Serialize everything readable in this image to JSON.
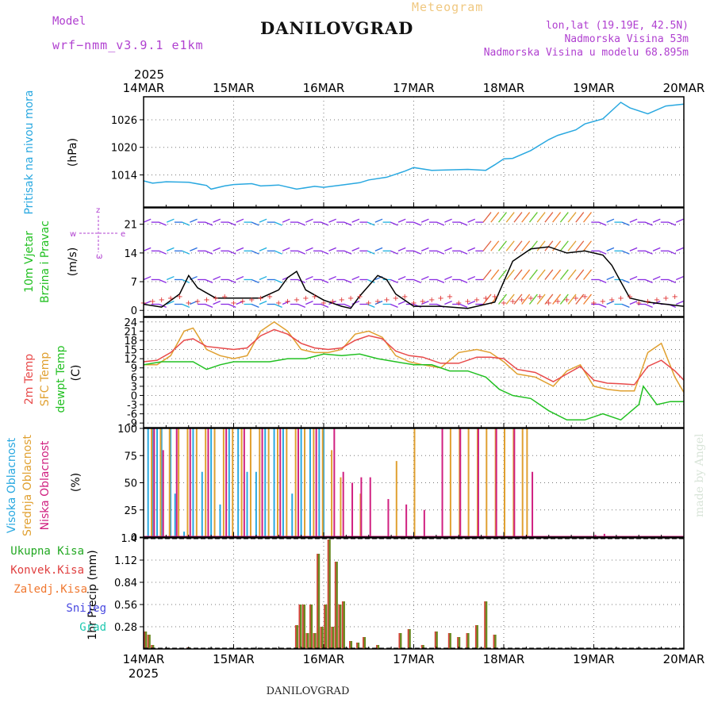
{
  "header": {
    "model_label": "Model",
    "model_name": "wrf−nmm_v3.9.1 e1km",
    "title": "DANILOVGRAD",
    "product": "Meteogram",
    "coords": "lon,lat (19.19E, 42.5N)",
    "elevation": "Nadmorska Visina 53m",
    "model_elevation": "Nadmorska Visina u modelu 68.895m",
    "watermark": "made by Angel",
    "footer_title": "DANILOVGRAD",
    "year": "2025"
  },
  "colors": {
    "pressure": "#29a8e0",
    "temp2m": "#e84a4a",
    "sfc_temp": "#e0a030",
    "dewpoint": "#22c022",
    "visoka": "#29a8e0",
    "srednja": "#e0a030",
    "niska": "#d02080",
    "ukupna": "#22a822",
    "konvek": "#e04040",
    "zaledj": "#f07830",
    "snijeg": "#4848e0",
    "grad": "#20c8b0",
    "wind_label": "#22c022",
    "dir_label": "#b040d0"
  },
  "chart_data": [
    {
      "type": "line",
      "panel": "pressure",
      "ylabel": [
        "Pritisak na nivou mora",
        "(hPa)"
      ],
      "ylim": [
        1007,
        1031
      ],
      "yticks": [
        1014,
        1020,
        1026
      ],
      "x_ticks": [
        "14MAR",
        "15MAR",
        "16MAR",
        "17MAR",
        "18MAR",
        "19MAR",
        "20MAR"
      ],
      "grid": true,
      "series": [
        {
          "name": "Pritisak na nivou mora",
          "x": [
            0,
            0.1,
            0.25,
            0.5,
            0.7,
            0.75,
            0.9,
            1.0,
            1.2,
            1.3,
            1.5,
            1.7,
            1.9,
            2.0,
            2.2,
            2.4,
            2.5,
            2.7,
            2.9,
            3.0,
            3.2,
            3.4,
            3.6,
            3.8,
            3.9,
            4.0,
            4.1,
            4.3,
            4.5,
            4.6,
            4.8,
            4.9,
            5.1,
            5.3,
            5.4,
            5.6,
            5.8,
            6.0
          ],
          "values": [
            1012.7,
            1012.2,
            1012.5,
            1012.4,
            1011.7,
            1010.9,
            1011.6,
            1011.9,
            1012.1,
            1011.6,
            1011.8,
            1010.9,
            1011.5,
            1011.3,
            1011.8,
            1012.3,
            1012.9,
            1013.5,
            1014.8,
            1015.6,
            1015.0,
            1015.1,
            1015.2,
            1015.0,
            1016.2,
            1017.5,
            1017.6,
            1019.3,
            1021.7,
            1022.6,
            1023.8,
            1025.1,
            1026.2,
            1029.8,
            1028.6,
            1027.3,
            1029.0,
            1029.4
          ]
        }
      ]
    },
    {
      "type": "line",
      "panel": "wind",
      "ylabel": [
        "10m Vjetar",
        "Brzina i Pravac",
        "(m/s)"
      ],
      "direction_legend": [
        "w",
        "e",
        "z",
        "ω"
      ],
      "ylim": [
        -1.5,
        25
      ],
      "yticks": [
        0,
        7,
        14,
        21
      ],
      "grid": true,
      "series": [
        {
          "name": "10m Vjetar",
          "x": [
            0,
            0.2,
            0.4,
            0.5,
            0.6,
            0.8,
            1.0,
            1.3,
            1.5,
            1.6,
            1.7,
            1.8,
            2.0,
            2.2,
            2.3,
            2.4,
            2.5,
            2.6,
            2.7,
            2.8,
            3.0,
            3.3,
            3.6,
            3.8,
            3.9,
            4.0,
            4.1,
            4.3,
            4.5,
            4.7,
            4.9,
            5.1,
            5.2,
            5.3,
            5.4,
            5.5,
            5.6,
            5.8,
            6.0
          ],
          "values": [
            1.5,
            0.8,
            4.0,
            8.5,
            5.5,
            3.0,
            3.0,
            3.0,
            5.0,
            8.0,
            9.5,
            5.0,
            2.5,
            1.0,
            0.5,
            3.5,
            6.0,
            8.5,
            7.5,
            4.0,
            1.0,
            1.0,
            0.5,
            1.5,
            2.0,
            7.0,
            12.0,
            15.0,
            15.5,
            14.0,
            14.5,
            13.5,
            11.0,
            7.0,
            3.0,
            2.5,
            2.0,
            1.5,
            1.0
          ]
        }
      ]
    },
    {
      "type": "line",
      "panel": "temperature",
      "ylabel": [
        "2m Temp",
        "SFC Temp",
        "dewpt Temp",
        "(C)"
      ],
      "ylim": [
        -10.5,
        25.5
      ],
      "yticks": [
        24,
        21,
        18,
        15,
        12,
        9,
        6,
        3,
        0,
        -3,
        -6,
        -9
      ],
      "grid": true,
      "series": [
        {
          "name": "2m Temp",
          "x": [
            0,
            0.15,
            0.3,
            0.45,
            0.55,
            0.7,
            0.85,
            1.0,
            1.15,
            1.3,
            1.45,
            1.6,
            1.75,
            1.9,
            2.05,
            2.2,
            2.35,
            2.5,
            2.65,
            2.8,
            2.95,
            3.1,
            3.3,
            3.5,
            3.7,
            3.85,
            4.0,
            4.15,
            4.35,
            4.55,
            4.7,
            4.85,
            5.0,
            5.15,
            5.3,
            5.45,
            5.6,
            5.75,
            5.9,
            6.0
          ],
          "values": [
            11,
            11.5,
            14,
            18,
            18.5,
            16,
            15.5,
            15,
            15.5,
            19.5,
            21.5,
            20,
            17,
            15.5,
            15,
            15.5,
            18,
            19.5,
            18.5,
            14.5,
            13,
            12.5,
            10.5,
            10.5,
            12.5,
            12.5,
            12,
            8.5,
            7.5,
            4.5,
            7,
            9.5,
            5,
            4,
            3.8,
            3.5,
            9.5,
            11.5,
            8,
            5
          ]
        },
        {
          "name": "SFC Temp",
          "x": [
            0,
            0.15,
            0.3,
            0.45,
            0.55,
            0.7,
            0.85,
            1.0,
            1.15,
            1.3,
            1.45,
            1.6,
            1.75,
            1.9,
            2.05,
            2.2,
            2.35,
            2.5,
            2.65,
            2.8,
            2.95,
            3.1,
            3.3,
            3.5,
            3.7,
            3.85,
            4.0,
            4.15,
            4.35,
            4.55,
            4.7,
            4.85,
            5.0,
            5.15,
            5.3,
            5.45,
            5.6,
            5.75,
            5.9,
            6.0
          ],
          "values": [
            10,
            10,
            13,
            21,
            22,
            15,
            13,
            12,
            13,
            21,
            24,
            21,
            15,
            14,
            14,
            15,
            20,
            21,
            19,
            13,
            11,
            10,
            9,
            14,
            15,
            14,
            11,
            7,
            6,
            3,
            8,
            10,
            3,
            2,
            1.5,
            1.5,
            14,
            17,
            6,
            1
          ]
        },
        {
          "name": "dewpt Temp",
          "x": [
            0,
            0.2,
            0.4,
            0.55,
            0.7,
            0.85,
            1.0,
            1.2,
            1.4,
            1.6,
            1.8,
            2.0,
            2.2,
            2.4,
            2.6,
            2.8,
            3.0,
            3.2,
            3.4,
            3.6,
            3.8,
            3.95,
            4.1,
            4.3,
            4.5,
            4.7,
            4.9,
            5.1,
            5.3,
            5.5,
            5.55,
            5.7,
            5.85,
            6.0
          ],
          "values": [
            10,
            11,
            11,
            11,
            8.5,
            10,
            11,
            11,
            11,
            12,
            12,
            13.5,
            13,
            13.5,
            12,
            11,
            10,
            10,
            8,
            8,
            6,
            2,
            0,
            -1,
            -5,
            -8,
            -8,
            -6,
            -8,
            -3,
            3,
            -3,
            -2,
            -2
          ]
        }
      ]
    },
    {
      "type": "bar",
      "panel": "clouds",
      "ylabel": [
        "Visoka Oblacnost",
        "Srednja Oblacnost",
        "Niska Oblacnost",
        "(%)"
      ],
      "ylim": [
        0,
        100
      ],
      "yticks": [
        0,
        25,
        50,
        75,
        100
      ],
      "grid": true,
      "series": [
        {
          "name": "Visoka Oblacnost",
          "x": [
            0.05,
            0.1,
            0.15,
            0.2,
            0.3,
            0.35,
            0.45,
            0.55,
            0.65,
            0.75,
            0.85,
            0.95,
            1.05,
            1.15,
            1.25,
            1.35,
            1.45,
            1.55,
            1.65,
            1.75,
            1.85,
            1.95,
            2.0
          ],
          "values": [
            100,
            100,
            100,
            100,
            100,
            40,
            5,
            100,
            60,
            100,
            30,
            100,
            100,
            60,
            60,
            100,
            100,
            100,
            40,
            100,
            100,
            100,
            100
          ]
        },
        {
          "name": "Srednja Oblacnost",
          "x": [
            0.08,
            0.18,
            0.28,
            0.38,
            0.48,
            0.58,
            0.68,
            0.78,
            0.88,
            0.98,
            1.08,
            1.18,
            1.28,
            1.38,
            1.48,
            1.58,
            1.68,
            1.78,
            1.88,
            1.98,
            2.08,
            2.18,
            2.4,
            2.8,
            3.0,
            3.4,
            3.5,
            3.6,
            3.7,
            3.8,
            3.9,
            4.0,
            4.1,
            4.2,
            4.25
          ],
          "values": [
            100,
            100,
            100,
            100,
            100,
            100,
            100,
            100,
            100,
            100,
            100,
            100,
            100,
            100,
            100,
            100,
            100,
            100,
            100,
            100,
            80,
            55,
            40,
            70,
            100,
            100,
            100,
            100,
            100,
            100,
            100,
            100,
            100,
            100,
            100
          ]
        },
        {
          "name": "Niska Oblacnost",
          "x": [
            0.1,
            0.2,
            0.35,
            0.5,
            0.7,
            0.9,
            1.1,
            1.3,
            1.5,
            1.7,
            1.9,
            2.1,
            2.2,
            2.3,
            2.4,
            2.5,
            2.7,
            2.9,
            3.1,
            3.3,
            3.5,
            3.7,
            3.9,
            4.1,
            4.3,
            5.0,
            5.1
          ],
          "values": [
            100,
            80,
            100,
            100,
            100,
            100,
            100,
            100,
            100,
            100,
            100,
            100,
            60,
            50,
            55,
            55,
            35,
            30,
            25,
            100,
            100,
            100,
            100,
            100,
            60,
            2,
            3
          ]
        }
      ]
    },
    {
      "type": "bar",
      "panel": "precipitation",
      "ylabel": [
        "1hr Precip (mm)"
      ],
      "legend": [
        "Ukupna Kisa",
        "Konvek.Kisa",
        "Zaledj.Kisa",
        "Snijeg",
        "Grad"
      ],
      "ylim": [
        0,
        1.4
      ],
      "yticks": [
        0.28,
        0.56,
        0.84,
        1.12,
        1.4
      ],
      "grid": true,
      "series": [
        {
          "name": "Ukupna Kisa",
          "x": [
            0.02,
            0.06,
            0.1,
            0.5,
            1.7,
            1.74,
            1.78,
            1.82,
            1.86,
            1.9,
            1.94,
            1.98,
            2.02,
            2.06,
            2.1,
            2.14,
            2.18,
            2.22,
            2.3,
            2.38,
            2.45,
            2.6,
            2.85,
            2.95,
            3.1,
            3.25,
            3.4,
            3.5,
            3.6,
            3.7,
            3.8,
            3.9
          ],
          "values": [
            0.22,
            0.18,
            0.05,
            0.02,
            0.3,
            0.56,
            0.56,
            0.2,
            0.56,
            0.2,
            1.2,
            0.28,
            0.56,
            1.38,
            0.28,
            1.1,
            0.56,
            0.6,
            0.1,
            0.08,
            0.15,
            0.05,
            0.2,
            0.25,
            0.05,
            0.22,
            0.2,
            0.15,
            0.2,
            0.3,
            0.6,
            0.18
          ]
        }
      ]
    }
  ]
}
